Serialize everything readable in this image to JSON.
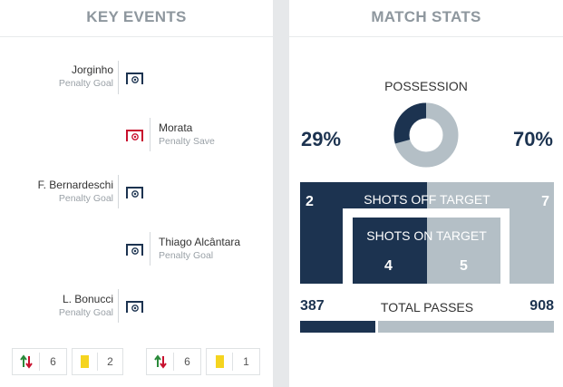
{
  "key_events": {
    "title": "KEY EVENTS",
    "events": [
      {
        "side": "home",
        "player": "Jorginho",
        "type": "Penalty Goal",
        "icon": "goal-net-icon",
        "color": "#1c3350"
      },
      {
        "side": "away",
        "player": "Morata",
        "type": "Penalty Save",
        "icon": "penalty-miss-icon",
        "color": "#c8102e"
      },
      {
        "side": "home",
        "player": "F. Bernardeschi",
        "type": "Penalty Goal",
        "icon": "goal-net-icon",
        "color": "#1c3350"
      },
      {
        "side": "away",
        "player": "Thiago Alcântara",
        "type": "Penalty Goal",
        "icon": "goal-net-icon",
        "color": "#1c3350"
      },
      {
        "side": "home",
        "player": "L. Bonucci",
        "type": "Penalty Goal",
        "icon": "goal-net-icon",
        "color": "#1c3350"
      }
    ],
    "home_summary": {
      "substitutions": "6",
      "yellow_cards": "2"
    },
    "away_summary": {
      "substitutions": "6",
      "yellow_cards": "1"
    }
  },
  "match_stats": {
    "title": "MATCH STATS",
    "possession": {
      "label": "POSSESSION",
      "home": "29%",
      "away": "70%",
      "home_value": 29,
      "away_value": 70
    },
    "shots_off_target": {
      "label": "SHOTS OFF TARGET",
      "home": "2",
      "away": "7"
    },
    "shots_on_target": {
      "label": "SHOTS ON TARGET",
      "home": "4",
      "away": "5"
    },
    "total_passes": {
      "label": "TOTAL PASSES",
      "home": "387",
      "away": "908",
      "home_value": 387,
      "away_value": 908
    }
  },
  "colors": {
    "home": "#1c3350",
    "away": "#b4bfc6",
    "penalty_miss": "#c8102e",
    "sub_up": "#2a8a3a",
    "sub_down": "#c8102e",
    "yellow_card": "#f5d41f"
  }
}
